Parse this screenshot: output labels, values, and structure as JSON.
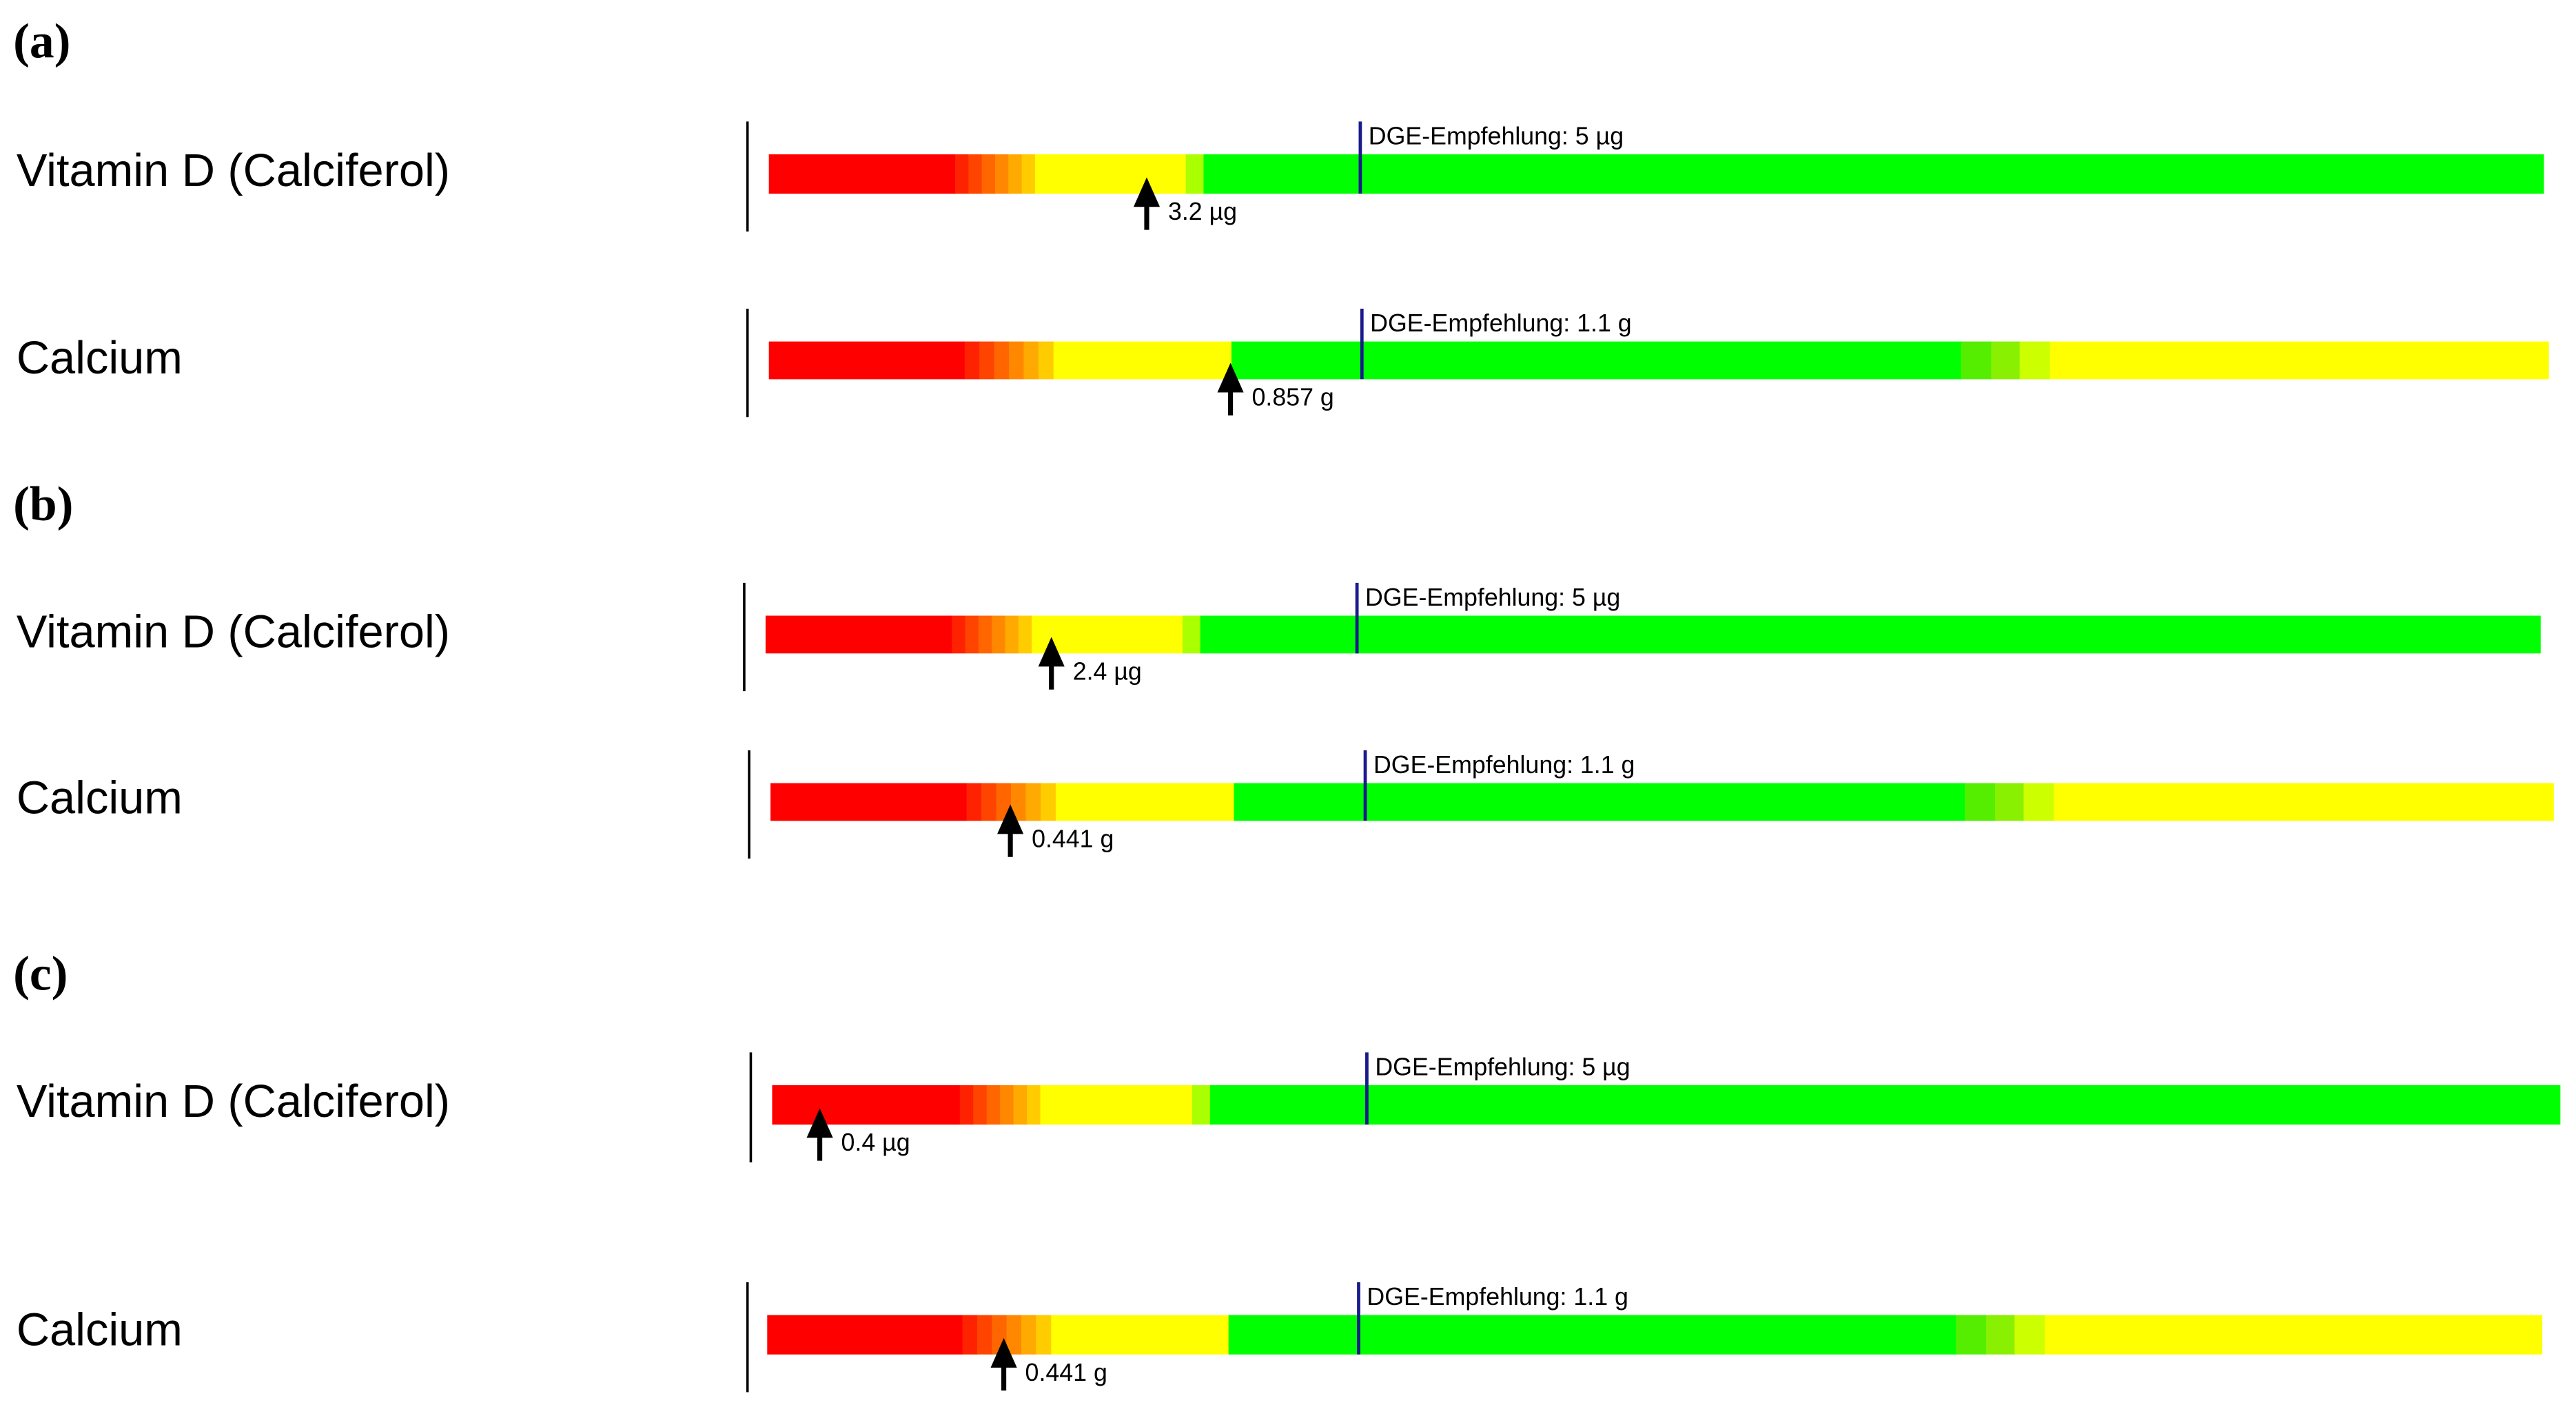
{
  "panels": [
    {
      "label": "(a)",
      "rows": [
        {
          "name": "Vitamin D (Calciferol)",
          "recommendation": "DGE-Empfehlung: 5 µg",
          "intake": "3.2 µg"
        },
        {
          "name": "Calcium",
          "recommendation": "DGE-Empfehlung: 1.1 g",
          "intake": "0.857 g"
        }
      ]
    },
    {
      "label": "(b)",
      "rows": [
        {
          "name": "Vitamin D (Calciferol)",
          "recommendation": "DGE-Empfehlung: 5 µg",
          "intake": "2.4 µg"
        },
        {
          "name": "Calcium",
          "recommendation": "DGE-Empfehlung: 1.1 g",
          "intake": "0.441 g"
        }
      ]
    },
    {
      "label": "(c)",
      "rows": [
        {
          "name": "Vitamin D (Calciferol)",
          "recommendation": "DGE-Empfehlung: 5 µg",
          "intake": "0.4 µg"
        },
        {
          "name": "Calcium",
          "recommendation": "DGE-Empfehlung: 1.1 g",
          "intake": "0.441 g"
        }
      ]
    }
  ]
}
